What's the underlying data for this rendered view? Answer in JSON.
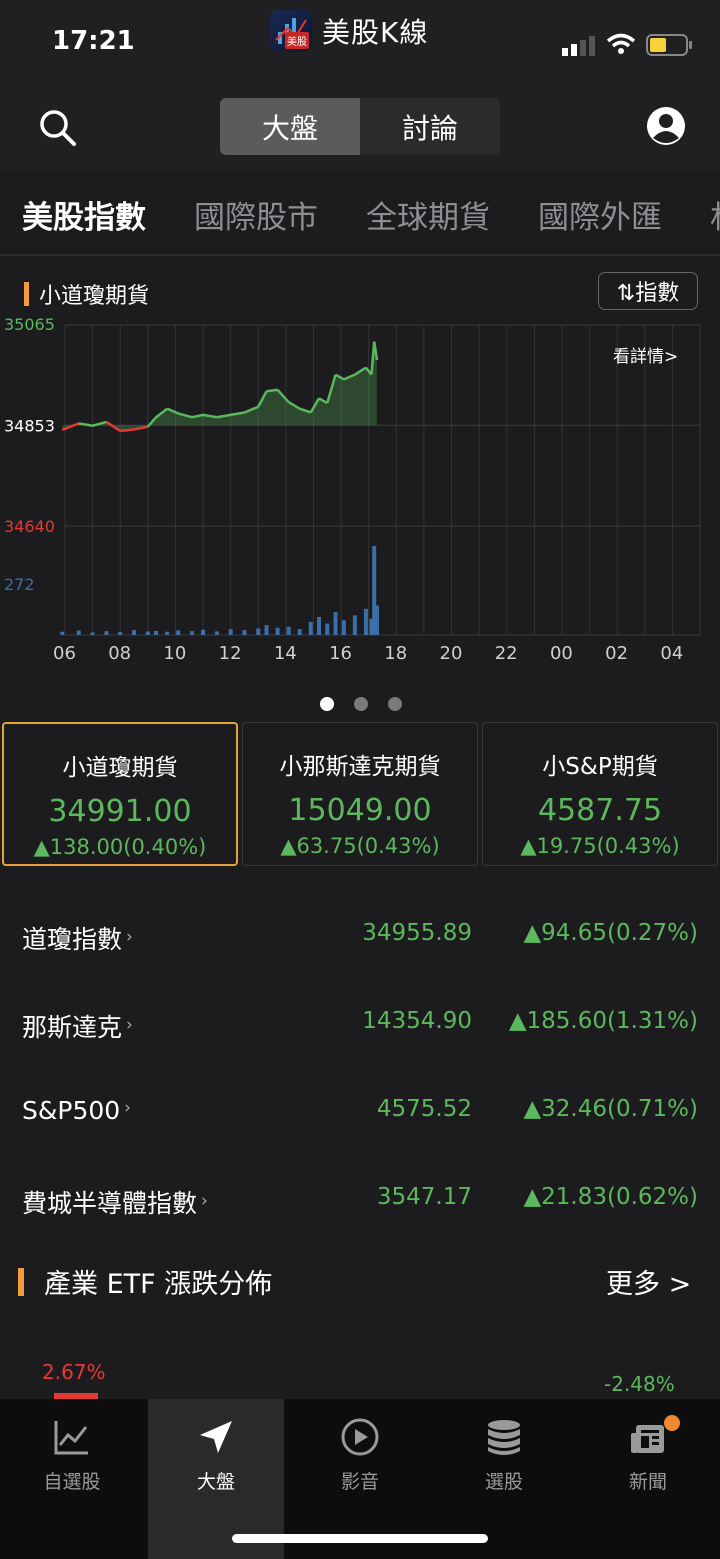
{
  "status": {
    "time": "17:21"
  },
  "app": {
    "title": "美股K線",
    "logo_text": "美股"
  },
  "header": {
    "segments": [
      "大盤",
      "討論"
    ],
    "active_segment": 0
  },
  "tabs": [
    "美股指數",
    "國際股市",
    "全球期貨",
    "國際外匯",
    "材"
  ],
  "chart": {
    "title": "小道瓊期貨",
    "toggle_label": "⇅指數",
    "detail_link": "看詳情>",
    "y_labels": {
      "high": "35065",
      "mid": "34853",
      "low": "34640",
      "volume": "272"
    },
    "x_ticks": [
      "06",
      "08",
      "10",
      "12",
      "14",
      "16",
      "18",
      "20",
      "22",
      "00",
      "02",
      "04"
    ]
  },
  "chart_data": {
    "type": "line",
    "title": "小道瓊期貨",
    "ylim": [
      34640,
      35065
    ],
    "reference": 34853,
    "x_hours": [
      5.9,
      6.5,
      7.0,
      7.5,
      8.0,
      8.5,
      9.0,
      9.3,
      9.7,
      10.1,
      10.6,
      11.0,
      11.5,
      12.0,
      12.5,
      13.0,
      13.3,
      13.7,
      14.1,
      14.5,
      14.9,
      15.2,
      15.5,
      15.8,
      16.1,
      16.5,
      16.9,
      17.1,
      17.2,
      17.3
    ],
    "values": [
      34843,
      34857,
      34852,
      34860,
      34841,
      34844,
      34850,
      34870,
      34888,
      34878,
      34870,
      34875,
      34870,
      34875,
      34880,
      34892,
      34925,
      34928,
      34902,
      34888,
      34880,
      34910,
      34900,
      34960,
      34950,
      34960,
      34975,
      34960,
      35030,
      34991
    ],
    "volume_max": 272,
    "volume": [
      10,
      14,
      8,
      12,
      9,
      15,
      11,
      13,
      10,
      14,
      12,
      16,
      11,
      18,
      15,
      20,
      30,
      22,
      25,
      18,
      40,
      55,
      35,
      70,
      45,
      60,
      80,
      50,
      272,
      90
    ]
  },
  "futures_cards": [
    {
      "name": "小道瓊期貨",
      "price": "34991.00",
      "change": "▲138.00(0.40%)",
      "selected": true
    },
    {
      "name": "小那斯達克期貨",
      "price": "15049.00",
      "change": "▲63.75(0.43%)",
      "selected": false
    },
    {
      "name": "小S&P期貨",
      "price": "4587.75",
      "change": "▲19.75(0.43%)",
      "selected": false
    }
  ],
  "index_rows": [
    {
      "name": "道瓊指數",
      "value": "34955.89",
      "change": "▲94.65(0.27%)"
    },
    {
      "name": "那斯達克",
      "value": "14354.90",
      "change": "▲185.60(1.31%)"
    },
    {
      "name": "S&P500",
      "value": "4575.52",
      "change": "▲32.46(0.71%)"
    },
    {
      "name": "費城半導體指數",
      "value": "3547.17",
      "change": "▲21.83(0.62%)"
    }
  ],
  "etf": {
    "title": "產業 ETF 漲跌分佈",
    "more": "更多 >",
    "top_up": "2.67%",
    "top_down": "-2.48%"
  },
  "nav": [
    {
      "label": "自選股",
      "icon": "chart-line-icon"
    },
    {
      "label": "大盤",
      "icon": "navigation-arrow-icon"
    },
    {
      "label": "影音",
      "icon": "play-circle-icon"
    },
    {
      "label": "選股",
      "icon": "database-stack-icon"
    },
    {
      "label": "新聞",
      "icon": "newspaper-icon"
    }
  ],
  "colors": {
    "up": "#5cb85c",
    "down": "#e53935",
    "accent": "#f39c3c",
    "volume": "#3b6fa8"
  }
}
